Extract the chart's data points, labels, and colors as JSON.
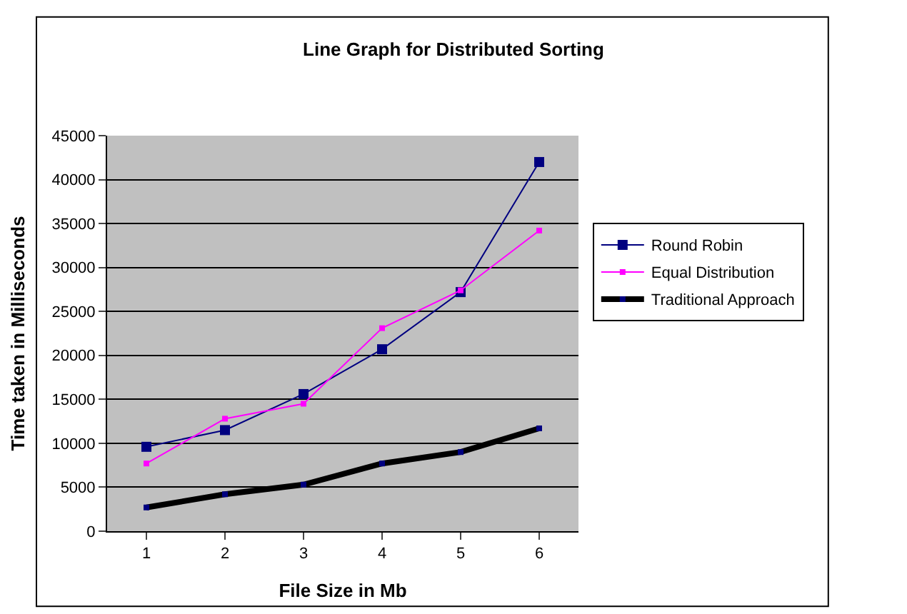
{
  "chart_data": {
    "type": "line",
    "title": "Line Graph for Distributed Sorting",
    "xlabel": "File Size in Mb",
    "ylabel": "Time taken in Milliseconds",
    "categories": [
      "1",
      "2",
      "3",
      "4",
      "5",
      "6"
    ],
    "series": [
      {
        "name": "Round Robin",
        "color": "#000080",
        "values": [
          9600,
          11500,
          15600,
          20700,
          27200,
          42000
        ]
      },
      {
        "name": "Equal Distribution",
        "color": "#ff00ff",
        "values": [
          7700,
          12800,
          14500,
          23100,
          27400,
          34200
        ]
      },
      {
        "name": "Traditional Approach",
        "color": "#000000",
        "values": [
          2700,
          4200,
          5300,
          7700,
          9000,
          11700
        ]
      }
    ],
    "ylim": [
      0,
      45000
    ],
    "yticks": [
      0,
      5000,
      10000,
      15000,
      20000,
      25000,
      30000,
      35000,
      40000,
      45000
    ],
    "grid": "y",
    "legend": "right",
    "marker": "square",
    "line_style": "solid"
  }
}
